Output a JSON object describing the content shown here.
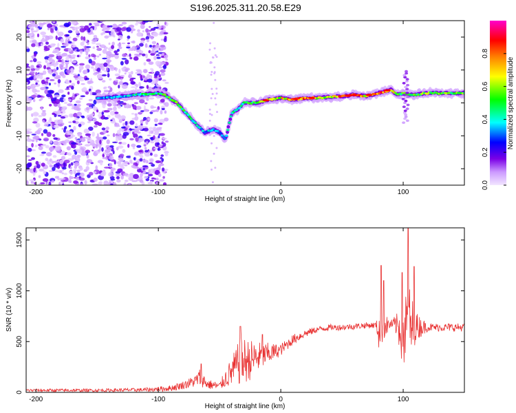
{
  "title": "S196.2025.311.20.58.E29",
  "colors": {
    "snr_line": "#e83030",
    "ridge_low": "#8a3cf0",
    "background": "#ffffff"
  },
  "chart_data": [
    {
      "type": "heatmap",
      "name": "spectrogram",
      "xlabel": "Height of straight line (km)",
      "ylabel": "Frequency (Hz)",
      "xlim": [
        -208,
        150
      ],
      "ylim": [
        -25,
        25
      ],
      "xticks": [
        -200,
        -100,
        0,
        100
      ],
      "yticks": [
        -20,
        -10,
        0,
        10,
        20
      ],
      "colorbar": {
        "label": "Normalized spectral amplitude",
        "range": [
          0,
          1
        ],
        "ticks": [
          0.0,
          0.2,
          0.4,
          0.6,
          0.8
        ],
        "colormap": [
          "#f2e6ff",
          "#cc99ff",
          "#7a00e6",
          "#0000ff",
          "#00ffff",
          "#00ff00",
          "#ffff00",
          "#ff8000",
          "#ff0000",
          "#ff00cc"
        ]
      },
      "ridge": {
        "x": [
          -145,
          -130,
          -115,
          -100,
          -95,
          -85,
          -75,
          -68,
          -62,
          -55,
          -50,
          -45,
          -40,
          -35,
          -30,
          -20,
          -10,
          0,
          10,
          20,
          30,
          40,
          50,
          60,
          70,
          80,
          85,
          90,
          95,
          100,
          105,
          110,
          120,
          130,
          140,
          150
        ],
        "freq": [
          1.5,
          2,
          2.5,
          3,
          2.5,
          0,
          -4,
          -7,
          -9,
          -8,
          -9,
          -11,
          -3,
          -2,
          0,
          0,
          1,
          1.5,
          1,
          1.5,
          1.5,
          1.8,
          2,
          2.5,
          2,
          3,
          3.5,
          4,
          2.5,
          3,
          2.5,
          2.5,
          3,
          3,
          3,
          3
        ],
        "amp": [
          0.35,
          0.35,
          0.45,
          0.45,
          0.55,
          0.55,
          0.45,
          0.4,
          0.35,
          0.4,
          0.35,
          0.35,
          0.45,
          0.45,
          0.5,
          0.55,
          0.6,
          0.7,
          0.75,
          0.8,
          0.7,
          0.65,
          0.8,
          0.9,
          0.7,
          0.8,
          0.85,
          0.75,
          0.6,
          0.55,
          0.5,
          0.55,
          0.6,
          0.6,
          0.55,
          0.55
        ]
      },
      "noise_region": [
        -208,
        -93
      ]
    },
    {
      "type": "line",
      "name": "snr",
      "xlabel": "Height of straight line (km)",
      "ylabel": "SNR (10 * v/v)",
      "xlim": [
        -208,
        150
      ],
      "ylim": [
        0,
        1620
      ],
      "xticks": [
        -200,
        -100,
        0,
        100
      ],
      "yticks": [
        0,
        500,
        1000,
        1500
      ],
      "envelope": {
        "x": [
          -208,
          -150,
          -110,
          -90,
          -80,
          -70,
          -66,
          -60,
          -50,
          -45,
          -40,
          -35,
          -32,
          -25,
          -15,
          -10,
          -5,
          0,
          10,
          20,
          30,
          40,
          50,
          60,
          70,
          78,
          80,
          85,
          90,
          95,
          100,
          105,
          110,
          120,
          150
        ],
        "base": [
          20,
          20,
          25,
          40,
          70,
          110,
          150,
          80,
          60,
          140,
          200,
          280,
          300,
          320,
          360,
          380,
          400,
          420,
          520,
          580,
          620,
          640,
          640,
          650,
          660,
          660,
          620,
          650,
          670,
          660,
          600,
          620,
          650,
          640,
          640
        ],
        "spread": [
          15,
          15,
          20,
          30,
          40,
          60,
          90,
          50,
          40,
          90,
          150,
          200,
          250,
          200,
          130,
          110,
          80,
          60,
          50,
          40,
          30,
          30,
          30,
          30,
          30,
          30,
          200,
          120,
          40,
          120,
          400,
          450,
          150,
          40,
          40
        ]
      },
      "peaks": [
        {
          "x": -65,
          "y": 280
        },
        {
          "x": -33,
          "y": 650
        },
        {
          "x": -15,
          "y": 570
        },
        {
          "x": 82,
          "y": 1250
        },
        {
          "x": 84,
          "y": 1100
        },
        {
          "x": 99,
          "y": 1180
        },
        {
          "x": 104,
          "y": 1620
        },
        {
          "x": 109,
          "y": 1240
        }
      ]
    }
  ]
}
